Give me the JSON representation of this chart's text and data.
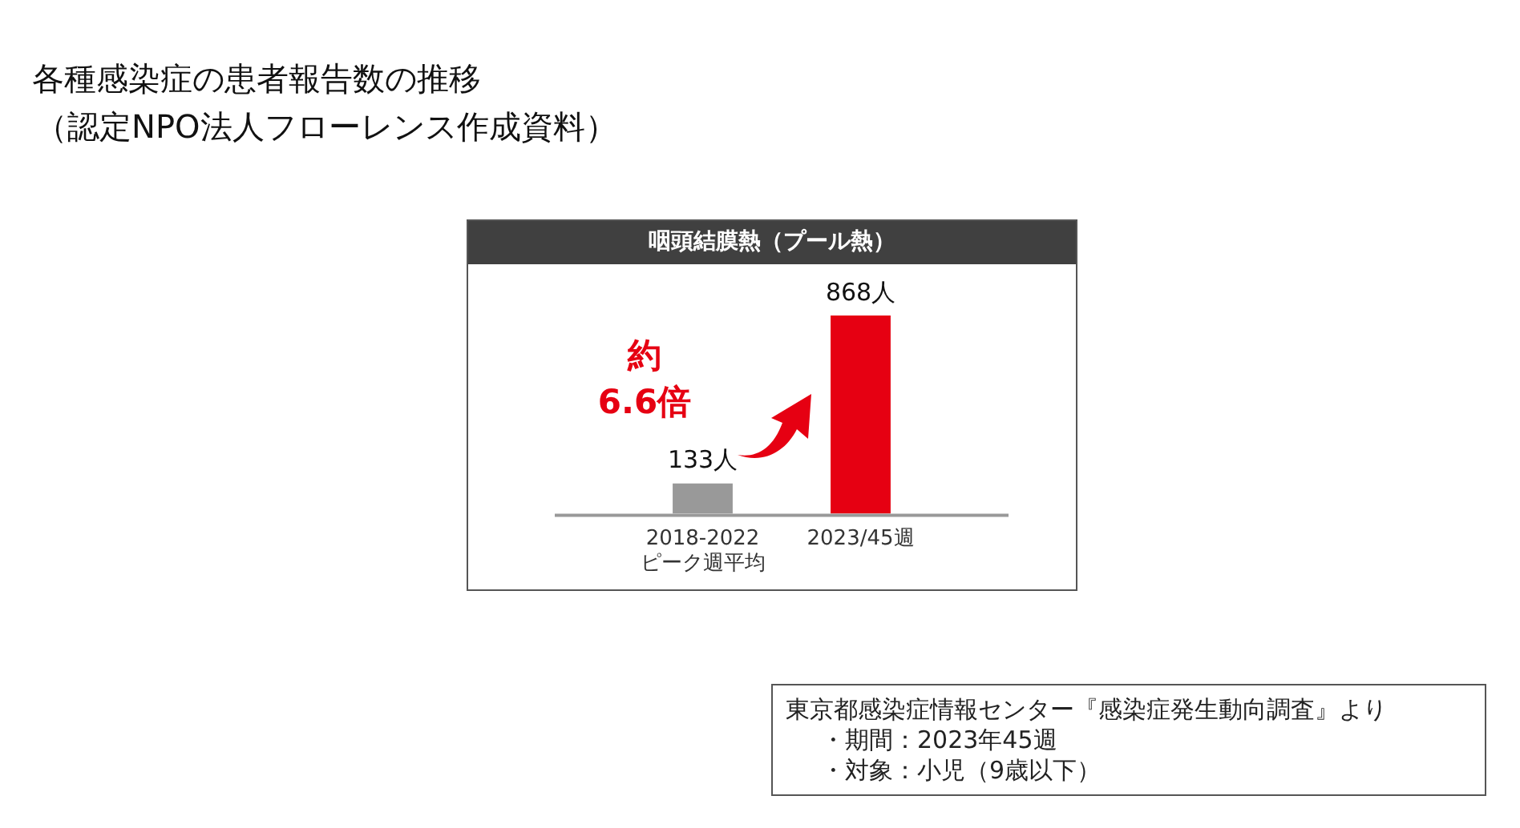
{
  "chart_data": {
    "type": "bar",
    "title": "各種感染症の患者報告数の推移",
    "subtitle": "（認定NPO法人フローレンス作成資料）",
    "annotations": [
      "咽頭結膜熱（プール熱）",
      "約",
      "6.6倍",
      "東京都感染症情報センター『感染症発生動向調査』より",
      "・期間：2023年45週",
      "・対象：小児（9歳以下）"
    ],
    "categories": [
      "2018-2022\nピーク週平均",
      "2023/45週"
    ],
    "values": [
      133,
      868
    ],
    "colors": [
      "#999999",
      "#e60012"
    ],
    "relative": false,
    "value_labels": [
      "133人",
      "868人"
    ],
    "grid": false,
    "legend": false
  }
}
